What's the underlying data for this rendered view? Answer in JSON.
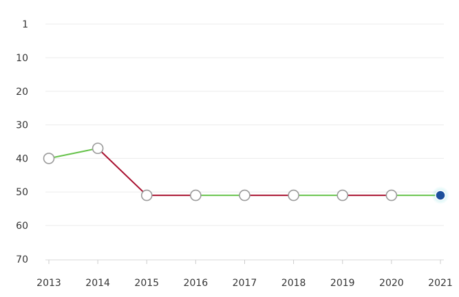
{
  "chart_data": {
    "type": "line",
    "title": "",
    "xlabel": "",
    "ylabel": "",
    "y_inverted": true,
    "ylim": [
      1,
      70
    ],
    "y_ticks": [
      1,
      10,
      20,
      30,
      40,
      50,
      60,
      70
    ],
    "x": [
      "2013",
      "2014",
      "2015",
      "2016",
      "2017",
      "2018",
      "2019",
      "2020",
      "2021"
    ],
    "values": [
      40,
      37,
      51,
      51,
      51,
      51,
      51,
      51,
      51
    ],
    "grid": true,
    "colors": {
      "improving": "#66c24a",
      "declining": "#a8102f",
      "marker_fill": "#ffffff",
      "marker_stroke": "#999999",
      "current_marker": "#1c4f9c"
    }
  }
}
